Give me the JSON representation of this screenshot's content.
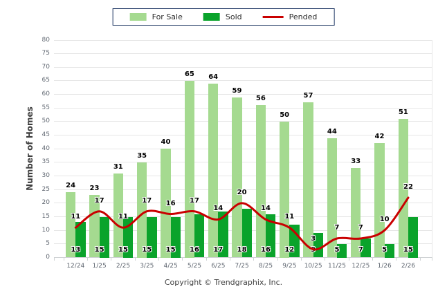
{
  "chart_data": {
    "type": "bar",
    "title": "",
    "categories": [
      "12/24",
      "1/25",
      "2/25",
      "3/25",
      "4/25",
      "5/25",
      "6/25",
      "7/25",
      "8/25",
      "9/25",
      "10/25",
      "11/25",
      "12/25",
      "1/26",
      "2/26"
    ],
    "series": [
      {
        "name": "For Sale",
        "type": "bar",
        "color": "#A5DA90",
        "values": [
          24,
          23,
          31,
          35,
          40,
          65,
          64,
          59,
          56,
          50,
          57,
          44,
          33,
          42,
          51
        ]
      },
      {
        "name": "Sold",
        "type": "bar",
        "color": "#0AA32B",
        "values": [
          13,
          15,
          15,
          15,
          15,
          16,
          17,
          18,
          16,
          12,
          9,
          5,
          7,
          5,
          15
        ]
      },
      {
        "name": "Pended",
        "type": "line",
        "color": "#C90000",
        "values": [
          11,
          17,
          11,
          17,
          16,
          17,
          14,
          20,
          14,
          11,
          3,
          7,
          7,
          10,
          22
        ]
      }
    ],
    "xlabel": "",
    "ylabel": "Number of Homes",
    "ylim": [
      0,
      80
    ],
    "ytick_step": 5,
    "grid": true,
    "legend_position": "top-center",
    "colors": {
      "grid": "#e6e6e6",
      "axis": "#cfd2d4",
      "tick_text": "#5f6670",
      "value_text": "#000000",
      "legend_border": "#203864"
    }
  },
  "footer": {
    "copyright": "Copyright © Trendgraphix, Inc."
  }
}
